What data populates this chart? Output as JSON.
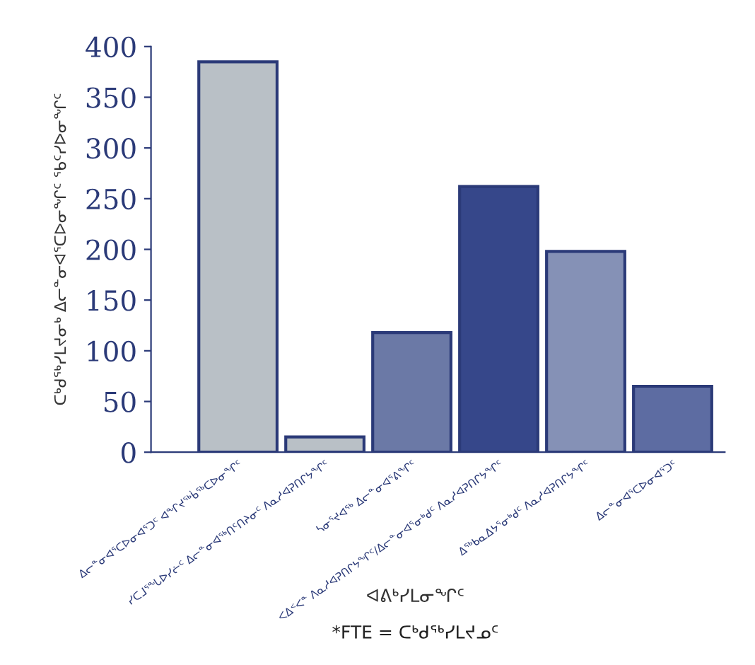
{
  "chart_data": {
    "type": "bar",
    "categories": [
      "ᐃᓕᓐᓂᐊᕐᑕᐅᓂᐊᕐᑐᑦ ᐊᖏᔪᖅᑳᖅᑕᐅᓂᖏᑦ",
      "ᓯᑕᒧᕐᖓᐅᓯᓖᑦ ᐃᓕᓐᓂᐊᖅᑎᑦᑎᔨᓂᑦ ᐱᓇᓱᐊᕈᑎᒋᔭᖏᑦ",
      "ᓴᓂᕐᔪᐊᖅ ᐃᓕᓐᓂᐊᕐᕕᖏᑦ",
      "ᐸᐃᑉᐸᓐ ᐱᓇᓱᐊᕈᑎᒋᔭᖏᑦ/ᐃᓕᓐᓂᐊᕐᓂᒃᑯᑦ ᐱᓇᓱᐊᕈᑎᒋᔭᖏᑦ",
      "ᐃᖅᑲᓇᐃᔭᕐᓂᒃᑯᑦ ᐱᓇᓱᐊᕈᑎᒋᔭᖏᑦ",
      "ᐃᓕᓐᓂᐊᕐᑕᐅᓂᐊᕐᑐᑦ"
    ],
    "values": [
      385,
      15,
      118,
      262,
      198,
      65
    ],
    "colors": [
      "#b9c0c6",
      "#b9c0c6",
      "#6b79a6",
      "#36478a",
      "#8591b6",
      "#5d6ca2"
    ],
    "xlabel": "ᐊᕕᒃᓯᒪᓂᖏᑦ",
    "ylabel": "ᑕᒃᑯᖅᓯᒪᔪᓂᒃ ᐃᓕᓐᓂᐊᕐᑕᐅᓂᖏᑦ ᖃᑦᓯᐅᓂᖏᑦ",
    "annotations": [
      "*FTE = ᑕᒃᑯᖅᓯᒪᔪᓄᑦ"
    ],
    "ylim": [
      0,
      400
    ],
    "yticks": [
      0,
      50,
      100,
      150,
      200,
      250,
      300,
      350,
      400
    ],
    "grid": false,
    "legend": false
  }
}
